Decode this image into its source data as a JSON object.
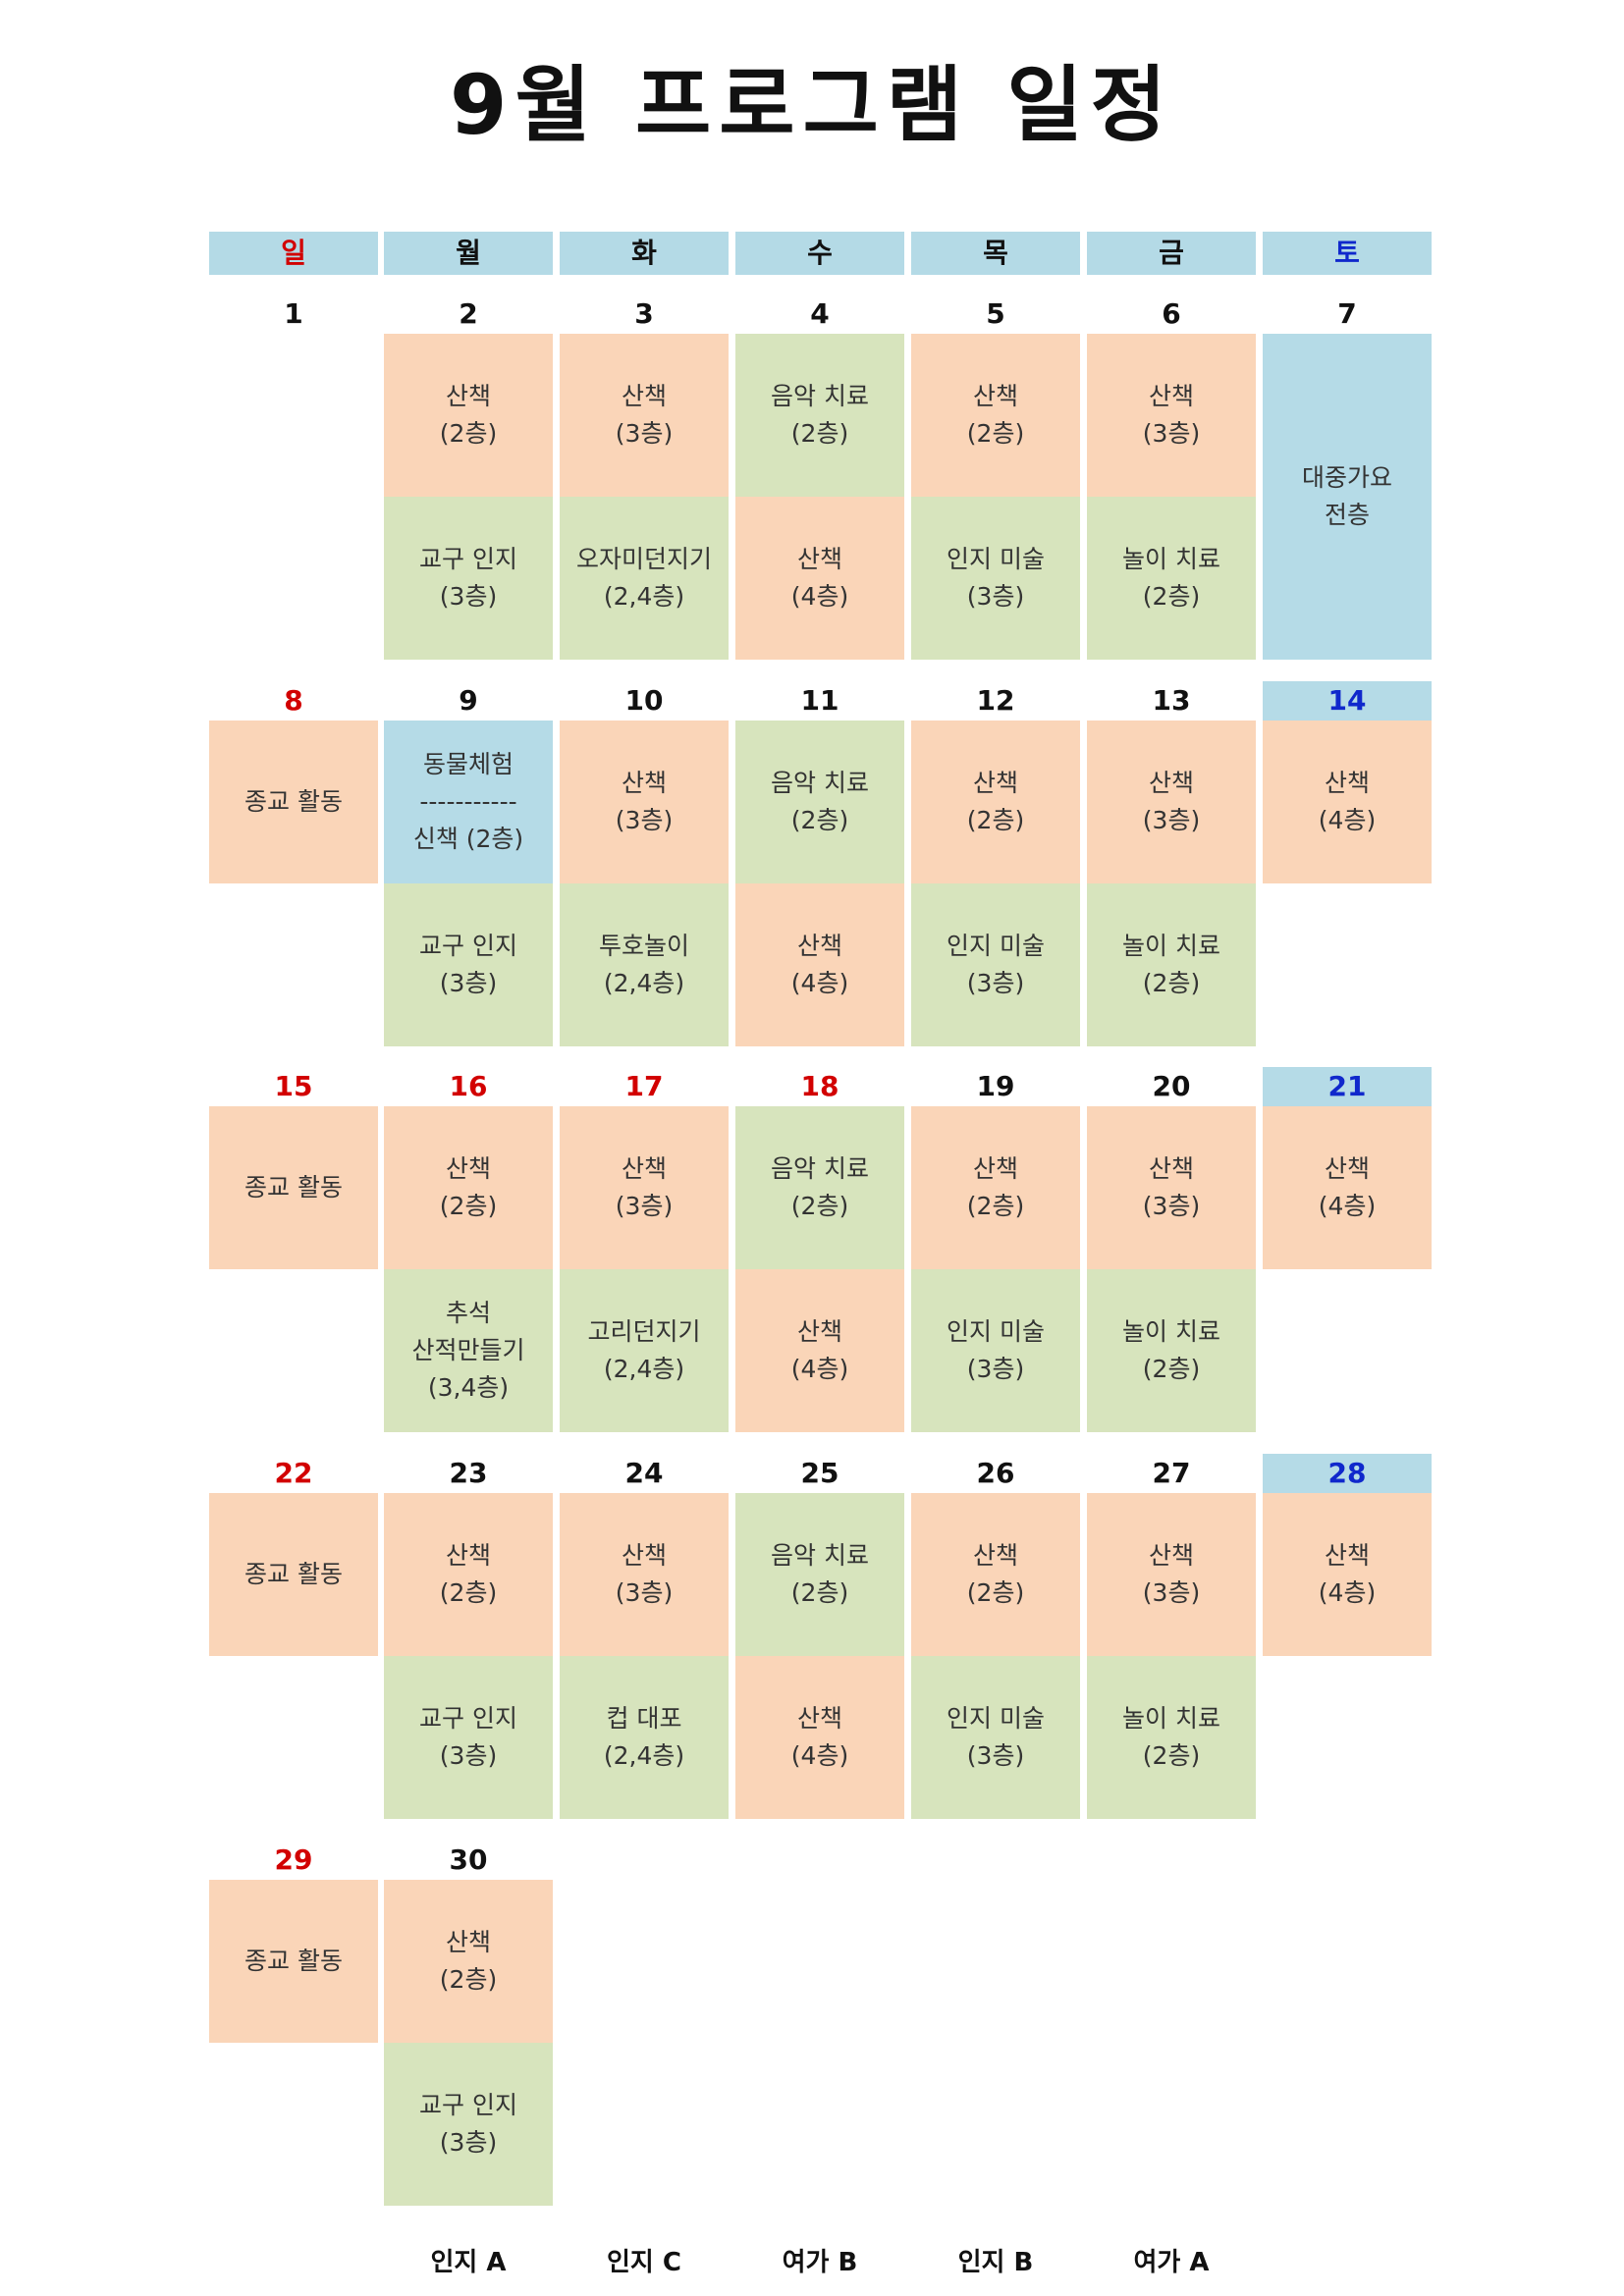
{
  "title": "9월 프로그램 일정",
  "colors": {
    "orange": "#fad5b8",
    "green": "#d7e4bd",
    "blue": "#b5dbe7",
    "header": "#b4dae6",
    "sunday_holiday": "#d20000",
    "saturday": "#1028cc"
  },
  "weekdays": [
    {
      "label": "일",
      "color": "red"
    },
    {
      "label": "월",
      "color": ""
    },
    {
      "label": "화",
      "color": ""
    },
    {
      "label": "수",
      "color": ""
    },
    {
      "label": "목",
      "color": ""
    },
    {
      "label": "금",
      "color": ""
    },
    {
      "label": "토",
      "color": "blue"
    }
  ],
  "weeks": [
    [
      {
        "day": "1",
        "color": "",
        "slots": []
      },
      {
        "day": "2",
        "color": "",
        "slots": [
          {
            "lines": [
              "산책",
              "(2층)"
            ],
            "bg": "orange"
          },
          {
            "lines": [
              "교구 인지",
              "(3층)"
            ],
            "bg": "green"
          }
        ]
      },
      {
        "day": "3",
        "color": "",
        "slots": [
          {
            "lines": [
              "산책",
              "(3층)"
            ],
            "bg": "orange"
          },
          {
            "lines": [
              "오자미던지기",
              "(2,4층)"
            ],
            "bg": "green"
          }
        ]
      },
      {
        "day": "4",
        "color": "",
        "slots": [
          {
            "lines": [
              "음악 치료",
              "(2층)"
            ],
            "bg": "green"
          },
          {
            "lines": [
              "산책",
              "(4층)"
            ],
            "bg": "orange"
          }
        ]
      },
      {
        "day": "5",
        "color": "",
        "slots": [
          {
            "lines": [
              "산책",
              "(2층)"
            ],
            "bg": "orange"
          },
          {
            "lines": [
              "인지 미술",
              "(3층)"
            ],
            "bg": "green"
          }
        ]
      },
      {
        "day": "6",
        "color": "",
        "slots": [
          {
            "lines": [
              "산책",
              "(3층)"
            ],
            "bg": "orange"
          },
          {
            "lines": [
              "놀이 치료",
              "(2층)"
            ],
            "bg": "green"
          }
        ]
      },
      {
        "day": "7",
        "color": "",
        "slots": [
          {
            "lines": [
              "대중가요",
              "전층"
            ],
            "bg": "blue",
            "span": 2
          }
        ]
      }
    ],
    [
      {
        "day": "8",
        "color": "red",
        "slots": [
          {
            "lines": [
              "종교 활동"
            ],
            "bg": "orange"
          }
        ]
      },
      {
        "day": "9",
        "color": "",
        "slots": [
          {
            "lines": [
              "동물체험",
              "-----------",
              "신책 (2층)"
            ],
            "bg": "blue"
          },
          {
            "lines": [
              "교구 인지",
              "(3층)"
            ],
            "bg": "green"
          }
        ]
      },
      {
        "day": "10",
        "color": "",
        "slots": [
          {
            "lines": [
              "산책",
              "(3층)"
            ],
            "bg": "orange"
          },
          {
            "lines": [
              "투호놀이",
              "(2,4층)"
            ],
            "bg": "green"
          }
        ]
      },
      {
        "day": "11",
        "color": "",
        "slots": [
          {
            "lines": [
              "음악 치료",
              "(2층)"
            ],
            "bg": "green"
          },
          {
            "lines": [
              "산책",
              "(4층)"
            ],
            "bg": "orange"
          }
        ]
      },
      {
        "day": "12",
        "color": "",
        "slots": [
          {
            "lines": [
              "산책",
              "(2층)"
            ],
            "bg": "orange"
          },
          {
            "lines": [
              "인지 미술",
              "(3층)"
            ],
            "bg": "green"
          }
        ]
      },
      {
        "day": "13",
        "color": "",
        "slots": [
          {
            "lines": [
              "산책",
              "(3층)"
            ],
            "bg": "orange"
          },
          {
            "lines": [
              "놀이 치료",
              "(2층)"
            ],
            "bg": "green"
          }
        ]
      },
      {
        "day": "14",
        "color": "blue",
        "slots": [
          {
            "lines": [
              "산책",
              "(4층)"
            ],
            "bg": "orange"
          }
        ]
      }
    ],
    [
      {
        "day": "15",
        "color": "red",
        "slots": [
          {
            "lines": [
              "종교 활동"
            ],
            "bg": "orange"
          }
        ]
      },
      {
        "day": "16",
        "color": "red",
        "slots": [
          {
            "lines": [
              "산책",
              "(2층)"
            ],
            "bg": "orange"
          },
          {
            "lines": [
              "추석",
              "산적만들기",
              "(3,4층)"
            ],
            "bg": "green"
          }
        ]
      },
      {
        "day": "17",
        "color": "red",
        "slots": [
          {
            "lines": [
              "산책",
              "(3층)"
            ],
            "bg": "orange"
          },
          {
            "lines": [
              "고리던지기",
              "(2,4층)"
            ],
            "bg": "green"
          }
        ]
      },
      {
        "day": "18",
        "color": "red",
        "slots": [
          {
            "lines": [
              "음악 치료",
              "(2층)"
            ],
            "bg": "green"
          },
          {
            "lines": [
              "산책",
              "(4층)"
            ],
            "bg": "orange"
          }
        ]
      },
      {
        "day": "19",
        "color": "",
        "slots": [
          {
            "lines": [
              "산책",
              "(2층)"
            ],
            "bg": "orange"
          },
          {
            "lines": [
              "인지 미술",
              "(3층)"
            ],
            "bg": "green"
          }
        ]
      },
      {
        "day": "20",
        "color": "",
        "slots": [
          {
            "lines": [
              "산책",
              "(3층)"
            ],
            "bg": "orange"
          },
          {
            "lines": [
              "놀이 치료",
              "(2층)"
            ],
            "bg": "green"
          }
        ]
      },
      {
        "day": "21",
        "color": "blue",
        "slots": [
          {
            "lines": [
              "산책",
              "(4층)"
            ],
            "bg": "orange"
          }
        ]
      }
    ],
    [
      {
        "day": "22",
        "color": "red",
        "slots": [
          {
            "lines": [
              "종교 활동"
            ],
            "bg": "orange"
          }
        ]
      },
      {
        "day": "23",
        "color": "",
        "slots": [
          {
            "lines": [
              "산책",
              "(2층)"
            ],
            "bg": "orange"
          },
          {
            "lines": [
              "교구 인지",
              "(3층)"
            ],
            "bg": "green"
          }
        ]
      },
      {
        "day": "24",
        "color": "",
        "slots": [
          {
            "lines": [
              "산책",
              "(3층)"
            ],
            "bg": "orange"
          },
          {
            "lines": [
              "컵 대포",
              "(2,4층)"
            ],
            "bg": "green"
          }
        ]
      },
      {
        "day": "25",
        "color": "",
        "slots": [
          {
            "lines": [
              "음악 치료",
              "(2층)"
            ],
            "bg": "green"
          },
          {
            "lines": [
              "산책",
              "(4층)"
            ],
            "bg": "orange"
          }
        ]
      },
      {
        "day": "26",
        "color": "",
        "slots": [
          {
            "lines": [
              "산책",
              "(2층)"
            ],
            "bg": "orange"
          },
          {
            "lines": [
              "인지 미술",
              "(3층)"
            ],
            "bg": "green"
          }
        ]
      },
      {
        "day": "27",
        "color": "",
        "slots": [
          {
            "lines": [
              "산책",
              "(3층)"
            ],
            "bg": "orange"
          },
          {
            "lines": [
              "놀이 치료",
              "(2층)"
            ],
            "bg": "green"
          }
        ]
      },
      {
        "day": "28",
        "color": "blue",
        "slots": [
          {
            "lines": [
              "산책",
              "(4층)"
            ],
            "bg": "orange"
          }
        ]
      }
    ],
    [
      {
        "day": "29",
        "color": "red",
        "slots": [
          {
            "lines": [
              "종교 활동"
            ],
            "bg": "orange"
          }
        ]
      },
      {
        "day": "30",
        "color": "",
        "slots": [
          {
            "lines": [
              "산책",
              "(2층)"
            ],
            "bg": "orange"
          },
          {
            "lines": [
              "교구 인지",
              "(3층)"
            ],
            "bg": "green"
          }
        ]
      }
    ]
  ],
  "footer": [
    {
      "col": 1,
      "label": "인지 A"
    },
    {
      "col": 2,
      "label": "인지 C"
    },
    {
      "col": 3,
      "label": "여가 B"
    },
    {
      "col": 4,
      "label": "인지 B"
    },
    {
      "col": 5,
      "label": "여가 A"
    }
  ]
}
